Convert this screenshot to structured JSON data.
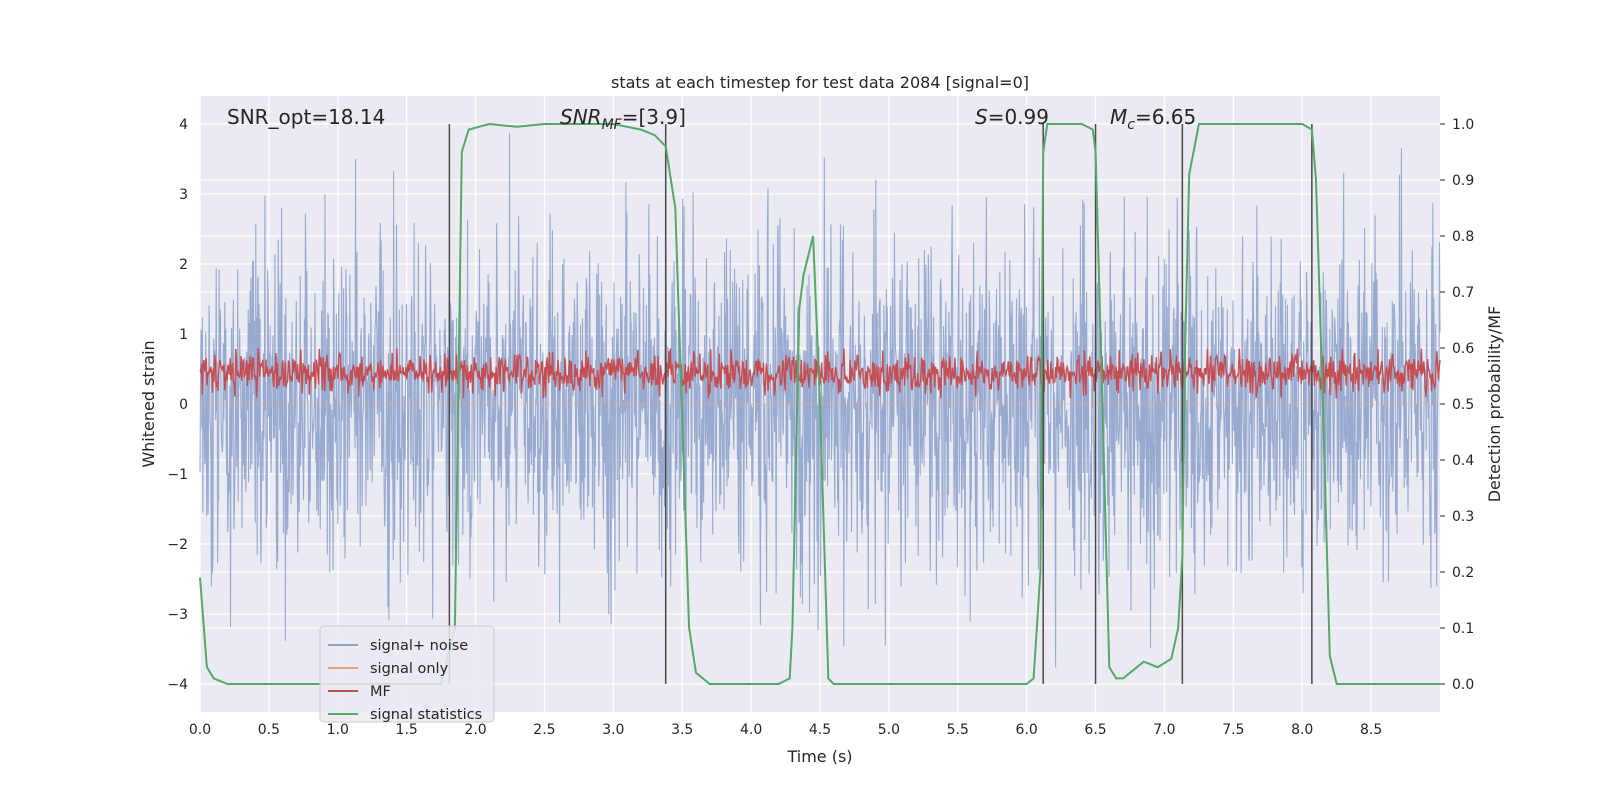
{
  "chart_data": {
    "type": "line",
    "title": "stats at each timestep for test data 2084 [signal=0]",
    "xlabel": "Time (s)",
    "ylabel": "Whitened strain",
    "ylabel_right": "Detection probability/MF",
    "xlim": [
      0,
      9.0
    ],
    "ylim": [
      -4.4,
      4.4
    ],
    "ylim_right": [
      -0.05,
      1.05
    ],
    "xticks": [
      "0.0",
      "0.5",
      "1.0",
      "1.5",
      "2.0",
      "2.5",
      "3.0",
      "3.5",
      "4.0",
      "4.5",
      "5.0",
      "5.5",
      "6.0",
      "6.5",
      "7.0",
      "7.5",
      "8.0",
      "8.5"
    ],
    "yticks": [
      "4",
      "3",
      "2",
      "1",
      "0",
      "−1",
      "−2",
      "−3",
      "−4"
    ],
    "yticks_right": [
      "1.0",
      "0.9",
      "0.8",
      "0.7",
      "0.6",
      "0.5",
      "0.4",
      "0.3",
      "0.2",
      "0.1",
      "0.0"
    ],
    "grid": true,
    "annotations": [
      {
        "id": "snr_opt",
        "text": "SNR_opt=18.14"
      },
      {
        "id": "snr_mf",
        "text": "SNR_MF=[3.9]"
      },
      {
        "id": "s",
        "text": "S=0.99"
      },
      {
        "id": "mc",
        "text": "M_c=6.65"
      }
    ],
    "legend": {
      "placement": "lower-left",
      "entries": [
        "signal+ noise",
        "signal only",
        "MF",
        "signal statistics"
      ]
    },
    "series": [
      {
        "name": "signal+ noise",
        "color": "#8fa3cc",
        "kind": "noise",
        "amplitude_typical": 1.6,
        "amplitude_max": 4.0
      },
      {
        "name": "signal only",
        "color": "#e8a07f",
        "kind": "flat",
        "value": 0
      },
      {
        "name": "MF",
        "color": "#c44e52",
        "axis": "right",
        "kind": "noise-band",
        "range": [
          0.51,
          0.6
        ]
      },
      {
        "name": "signal statistics",
        "color": "#55a868",
        "axis": "right",
        "x": [
          0.0,
          0.05,
          0.1,
          0.2,
          0.3,
          0.5,
          1.0,
          1.5,
          1.75,
          1.8,
          1.85,
          1.9,
          1.95,
          2.1,
          2.3,
          2.5,
          2.8,
          3.0,
          3.2,
          3.3,
          3.38,
          3.45,
          3.55,
          3.6,
          3.7,
          3.8,
          4.0,
          4.2,
          4.28,
          4.3,
          4.35,
          4.38,
          4.45,
          4.5,
          4.56,
          4.6,
          4.7,
          5.0,
          5.5,
          6.0,
          6.05,
          6.1,
          6.12,
          6.15,
          6.2,
          6.3,
          6.4,
          6.48,
          6.5,
          6.55,
          6.6,
          6.65,
          6.7,
          6.75,
          6.85,
          6.95,
          7.05,
          7.1,
          7.13,
          7.15,
          7.18,
          7.25,
          7.3,
          7.5,
          7.8,
          8.0,
          8.07,
          8.1,
          8.15,
          8.2,
          8.25,
          8.3,
          8.5,
          8.8,
          9.0
        ],
        "y": [
          0.19,
          0.03,
          0.01,
          0.0,
          0.0,
          0.0,
          0.0,
          0.0,
          0.0,
          0.05,
          0.1,
          0.95,
          0.99,
          1.0,
          0.995,
          1.0,
          1.0,
          1.0,
          0.99,
          0.98,
          0.96,
          0.85,
          0.1,
          0.02,
          0.0,
          0.0,
          0.0,
          0.0,
          0.01,
          0.1,
          0.67,
          0.73,
          0.8,
          0.5,
          0.01,
          0.0,
          0.0,
          0.0,
          0.0,
          0.0,
          0.01,
          0.2,
          0.95,
          1.0,
          1.0,
          1.0,
          1.0,
          0.99,
          0.95,
          0.5,
          0.03,
          0.01,
          0.01,
          0.02,
          0.04,
          0.03,
          0.045,
          0.1,
          0.23,
          0.6,
          0.91,
          1.0,
          1.0,
          1.0,
          1.0,
          1.0,
          0.99,
          0.9,
          0.5,
          0.05,
          0.0,
          0.0,
          0.0,
          0.0,
          0.0
        ]
      }
    ],
    "vertical_lines_x": [
      1.81,
      3.38,
      6.12,
      6.5,
      7.13,
      8.07
    ],
    "colors": {
      "background": "#eaeaf2",
      "grid": "#ffffff",
      "vline": "#4a4a4a"
    }
  }
}
